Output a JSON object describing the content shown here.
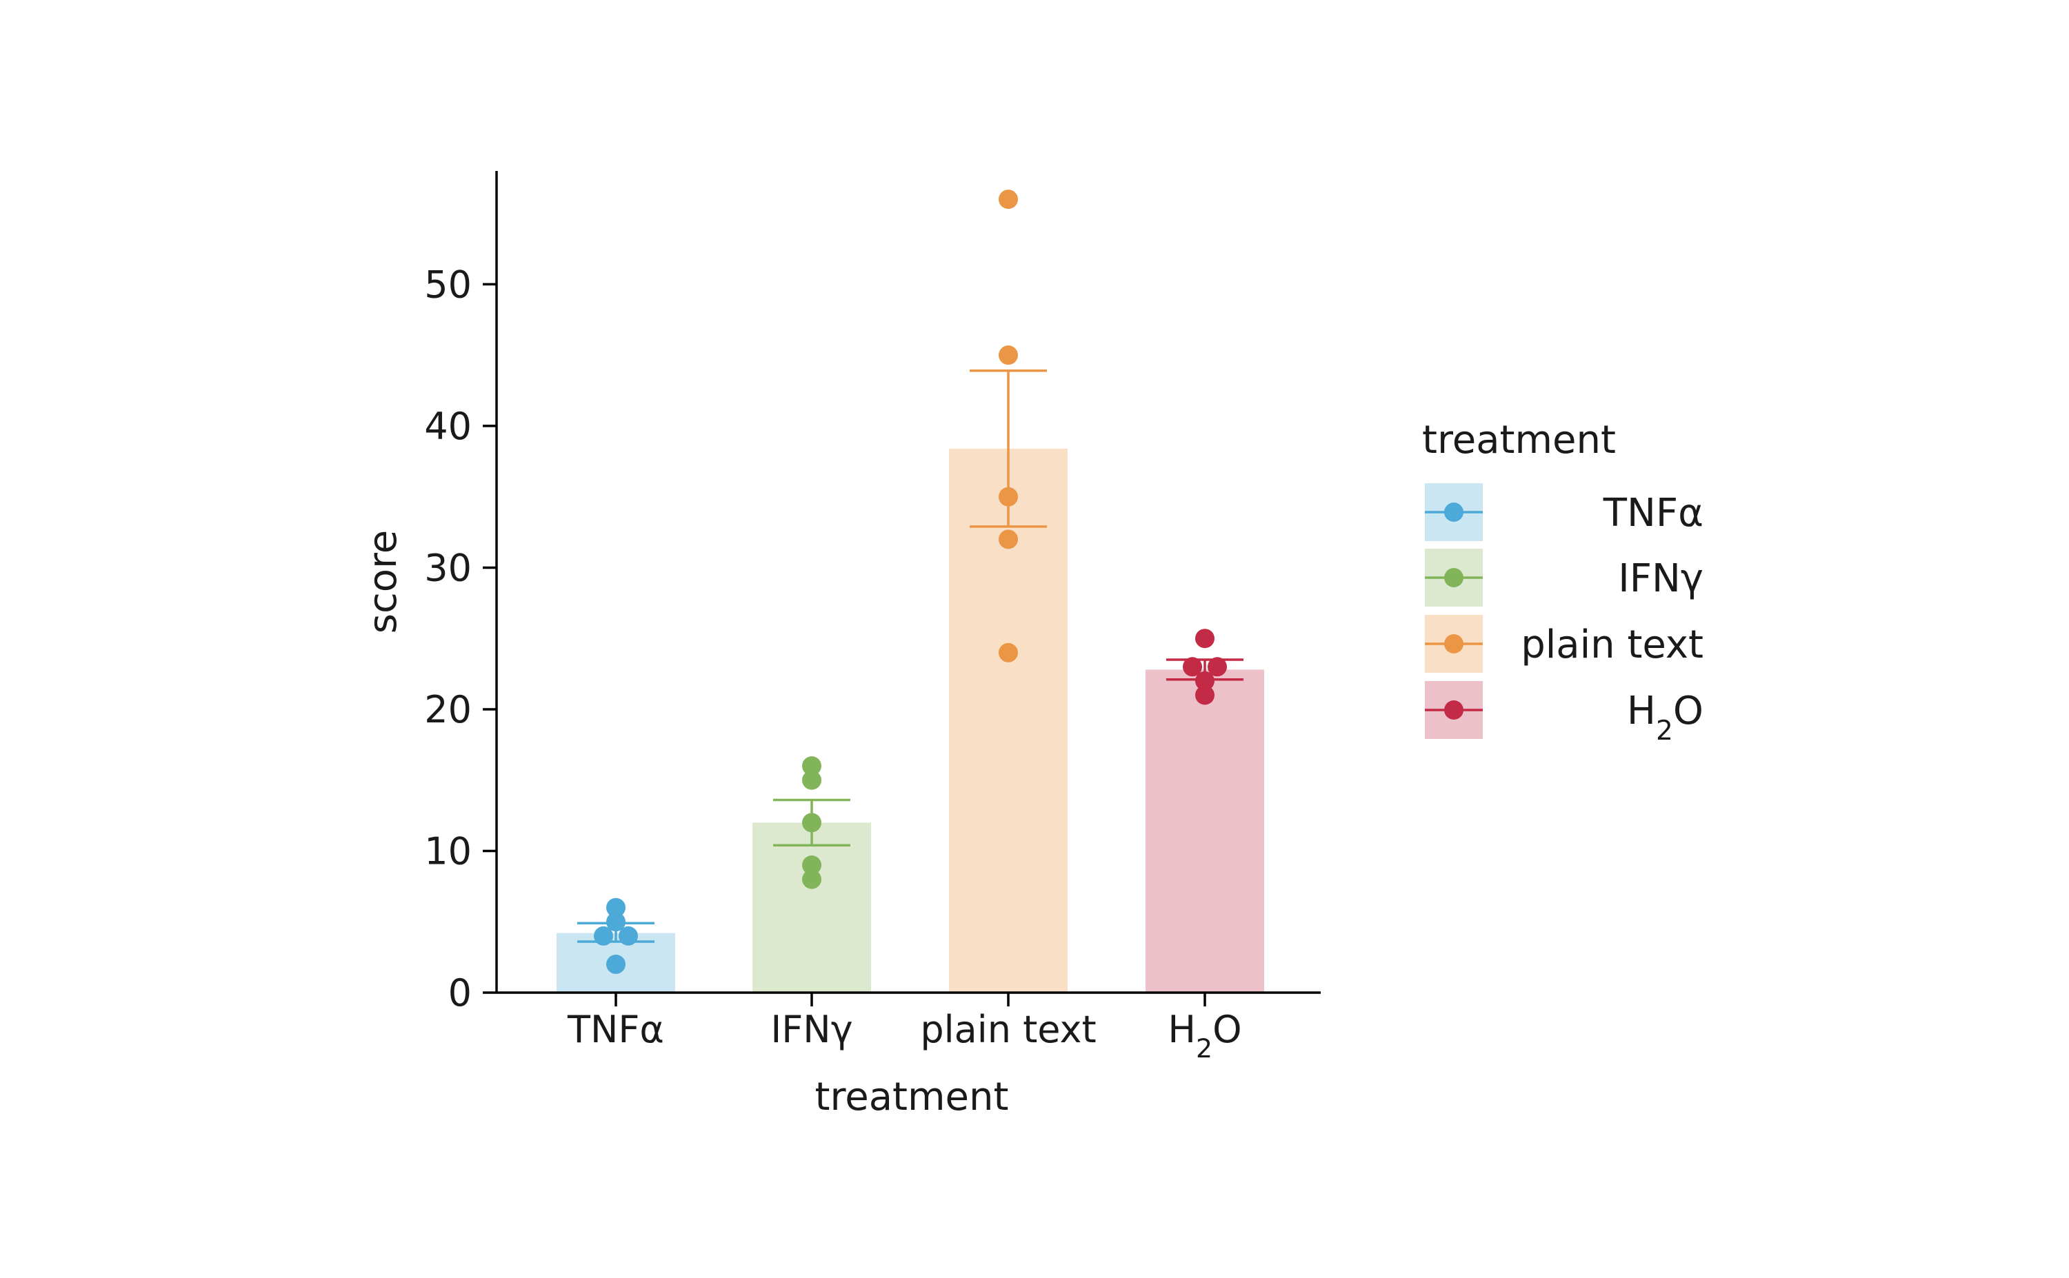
{
  "chart_data": {
    "type": "bar",
    "title": "",
    "xlabel": "treatment",
    "ylabel": "score",
    "ylim": [
      0,
      58
    ],
    "yticks": [
      0,
      10,
      20,
      30,
      40,
      50
    ],
    "grid": false,
    "legend": {
      "title": "treatment",
      "placement": "right"
    },
    "categories": [
      {
        "label": "TNFα",
        "base": "TNF",
        "sym": "α",
        "sub": "",
        "tail": "",
        "color": "#4daad8",
        "fill": "#cbe6f3",
        "mean": 4.2,
        "err_low": 3.6,
        "err_high": 4.9,
        "points": [
          6,
          5,
          4,
          4,
          2
        ]
      },
      {
        "label": "IFNγ",
        "base": "IFN",
        "sym": "γ",
        "sub": "",
        "tail": "",
        "color": "#82b55a",
        "fill": "#dde9cf",
        "mean": 12,
        "err_low": 10.4,
        "err_high": 13.6,
        "points": [
          16,
          15,
          12,
          9,
          8
        ]
      },
      {
        "label": "plain text",
        "base": "plain text",
        "sym": "",
        "sub": "",
        "tail": "",
        "color": "#eb9645",
        "fill": "#f8dfc6",
        "mean": 38.4,
        "err_low": 32.9,
        "err_high": 43.9,
        "points": [
          56,
          45,
          35,
          32,
          24
        ]
      },
      {
        "label": "H₂O",
        "base": "H",
        "sym": "",
        "sub": "2",
        "tail": "O",
        "color": "#c32a45",
        "fill": "#ecc1c9",
        "mean": 22.8,
        "err_low": 22.1,
        "err_high": 23.5,
        "points": [
          25,
          23,
          23,
          22,
          21
        ]
      }
    ]
  }
}
